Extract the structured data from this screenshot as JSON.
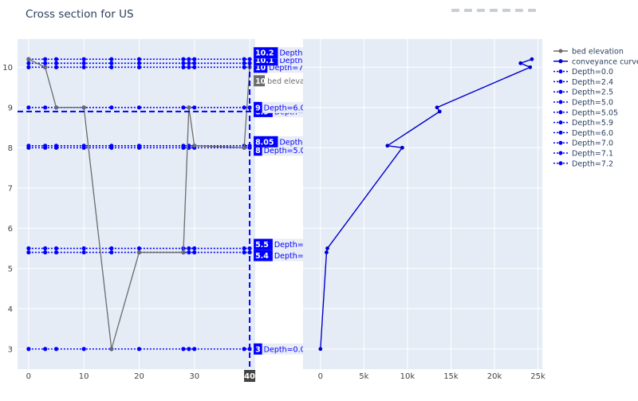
{
  "title": "Cross section for US",
  "colors": {
    "plot_bg": "#e5ecf6",
    "grid": "#ffffff",
    "bed": "#6c6c6c",
    "depth": "#0000ff",
    "conveyance": "#0000cc",
    "axis_text": "#444444",
    "title_text": "#2a3f5f",
    "hover_bg": "#e9edf5"
  },
  "modebar_icons": [
    "camera-icon",
    "zoom-icon",
    "pan-icon",
    "box-select-icon",
    "zoom-in-icon",
    "zoom-out-icon",
    "autoscale-icon",
    "reset-axes-icon"
  ],
  "chart_data": [
    {
      "type": "line",
      "xlim": [
        -2,
        41
      ],
      "ylim": [
        2.5,
        10.7
      ],
      "xticks": [
        0,
        10,
        20,
        30,
        40
      ],
      "xtick_labels": [
        "0",
        "10",
        "20",
        "30",
        ""
      ],
      "yticks": [
        3,
        4,
        5,
        6,
        7,
        8,
        9,
        10
      ],
      "ytick_labels": [
        "3",
        "4",
        "5",
        "6",
        "7",
        "8",
        "9",
        "10"
      ],
      "grid": true,
      "series": [
        {
          "name": "bed elevation",
          "x": [
            0,
            3,
            5,
            10,
            15,
            20,
            28,
            29,
            30,
            39,
            40
          ],
          "y": [
            10.2,
            10,
            9,
            9,
            3,
            5.4,
            5.4,
            9,
            8.05,
            8,
            10
          ]
        },
        {
          "name": "Depth=0.0",
          "x": [
            0,
            3,
            5,
            10,
            15,
            20,
            28,
            29,
            30,
            39,
            40
          ],
          "y": 3.0,
          "label": "3"
        },
        {
          "name": "Depth=2.4",
          "x": [
            0,
            3,
            5,
            10,
            15,
            20,
            28,
            29,
            30,
            39,
            40
          ],
          "y": 5.4,
          "label": "5.4"
        },
        {
          "name": "Depth=2.5",
          "x": [
            0,
            3,
            5,
            10,
            15,
            20,
            28,
            29,
            30,
            39,
            40
          ],
          "y": 5.5,
          "label": "5.5"
        },
        {
          "name": "Depth=5.0",
          "x": [
            0,
            3,
            5,
            10,
            15,
            20,
            28,
            29,
            30,
            39,
            40
          ],
          "y": 8.0,
          "label": "8"
        },
        {
          "name": "Depth=5.05",
          "x": [
            0,
            3,
            5,
            10,
            15,
            20,
            28,
            29,
            30,
            39,
            40
          ],
          "y": 8.05,
          "label": "8.05"
        },
        {
          "name": "Depth=5.9",
          "x": [],
          "y": 8.9,
          "label": "8.9"
        },
        {
          "name": "Depth=6.0",
          "x": [
            0,
            3,
            5,
            10,
            15,
            20,
            28,
            29,
            30,
            39,
            40
          ],
          "y": 9.0,
          "label": "9"
        },
        {
          "name": "Depth=7.0",
          "x": [
            0,
            3,
            5,
            10,
            15,
            20,
            28,
            29,
            30,
            39,
            40
          ],
          "y": 10.0,
          "label": "10"
        },
        {
          "name": "Depth=7.1",
          "x": [
            0,
            3,
            5,
            10,
            15,
            20,
            28,
            29,
            30,
            39,
            40
          ],
          "y": 10.1,
          "label": "10.1"
        },
        {
          "name": "Depth=7.2",
          "x": [
            0,
            3,
            5,
            10,
            15,
            20,
            28,
            29,
            30,
            39,
            40
          ],
          "y": 10.2,
          "label": "10.2"
        }
      ],
      "bed_hover_label": "10",
      "crosshair": {
        "x": 40,
        "y": 8.9,
        "x_label": "40"
      }
    },
    {
      "type": "line",
      "xlim": [
        -2000,
        25500
      ],
      "ylim": [
        2.5,
        10.7
      ],
      "xticks": [
        0,
        5000,
        10000,
        15000,
        20000,
        25000
      ],
      "xtick_labels": [
        "0",
        "5k",
        "10k",
        "15k",
        "20k",
        "25k"
      ],
      "yticks": [
        3,
        4,
        5,
        6,
        7,
        8,
        9,
        10
      ],
      "grid": true,
      "series": [
        {
          "name": "conveyance curve",
          "x": [
            0,
            700,
            800,
            9400,
            7700,
            13700,
            13400,
            24100,
            23000,
            24300
          ],
          "y": [
            3.0,
            5.4,
            5.5,
            8.0,
            8.05,
            8.9,
            9.0,
            10.0,
            10.1,
            10.2
          ]
        }
      ]
    }
  ],
  "legend": {
    "position": "right",
    "items": [
      {
        "label": "bed elevation",
        "color": "#6c6c6c",
        "dash": false
      },
      {
        "label": "conveyance curve",
        "color": "#0000cc",
        "dash": false
      },
      {
        "label": "Depth=0.0",
        "color": "#0000ff",
        "dash": true
      },
      {
        "label": "Depth=2.4",
        "color": "#0000ff",
        "dash": true
      },
      {
        "label": "Depth=2.5",
        "color": "#0000ff",
        "dash": true
      },
      {
        "label": "Depth=5.0",
        "color": "#0000ff",
        "dash": true
      },
      {
        "label": "Depth=5.05",
        "color": "#0000ff",
        "dash": true
      },
      {
        "label": "Depth=5.9",
        "color": "#0000ff",
        "dash": true
      },
      {
        "label": "Depth=6.0",
        "color": "#0000ff",
        "dash": true
      },
      {
        "label": "Depth=7.0",
        "color": "#0000ff",
        "dash": true
      },
      {
        "label": "Depth=7.1",
        "color": "#0000ff",
        "dash": true
      },
      {
        "label": "Depth=7.2",
        "color": "#0000ff",
        "dash": true
      }
    ]
  }
}
